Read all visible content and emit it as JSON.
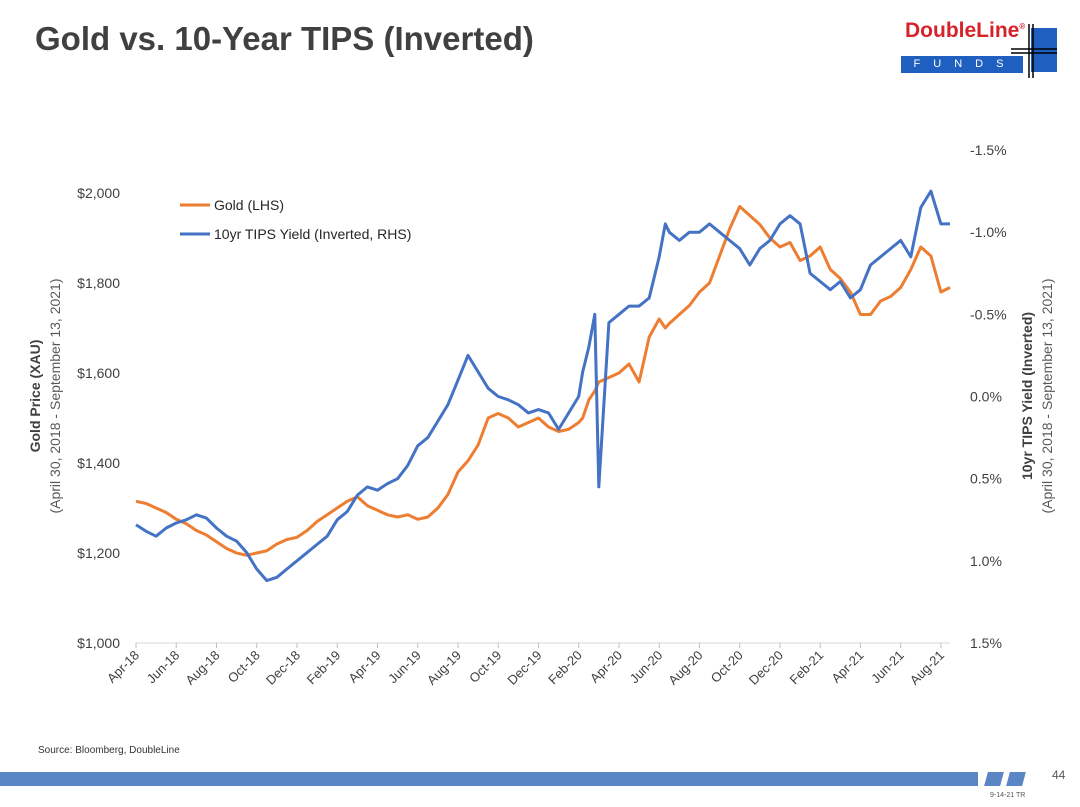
{
  "header": {
    "title": "Gold vs. 10-Year TIPS (Inverted)"
  },
  "logo": {
    "word": "DoubleLine",
    "registered": "®",
    "sub": "FUNDS",
    "colors": {
      "red": "#d6232a",
      "blue": "#1f5fbf"
    }
  },
  "footer": {
    "source": "Source: Bloomberg, DoubleLine",
    "page_number": "44",
    "stamp": "9-14-21 TR"
  },
  "chart_data": {
    "type": "line",
    "title": "Gold vs. 10-Year TIPS (Inverted)",
    "ylabel_left": "Gold Price (XAU)",
    "ylabel_left_sub": "(April 30, 2018 - September 13, 2021)",
    "ylabel_right": "10yr TIPS Yield (Inverted)",
    "ylabel_right_sub": "(April 30, 2018 - September 13, 2021)",
    "ylim_left": [
      1000,
      2000
    ],
    "ylim_right": [
      1.5,
      -1.5
    ],
    "left_ticks": [
      "$1,000",
      "$1,200",
      "$1,400",
      "$1,600",
      "$1,800",
      "$2,000"
    ],
    "left_tick_values": [
      1000,
      1200,
      1400,
      1600,
      1800,
      2000
    ],
    "right_ticks": [
      "1.5%",
      "1.0%",
      "0.5%",
      "0.0%",
      "-0.5%",
      "-1.0%",
      "-1.5%"
    ],
    "right_tick_values": [
      1.5,
      1.0,
      0.5,
      0.0,
      -0.5,
      -1.0,
      -1.5
    ],
    "x_tick_labels": [
      "Apr-18",
      "Jun-18",
      "Aug-18",
      "Oct-18",
      "Dec-18",
      "Feb-19",
      "Apr-19",
      "Jun-19",
      "Aug-19",
      "Oct-19",
      "Dec-19",
      "Feb-20",
      "Apr-20",
      "Jun-20",
      "Aug-20",
      "Oct-20",
      "Dec-20",
      "Feb-21",
      "Apr-21",
      "Jun-21",
      "Aug-21"
    ],
    "x_range_months": [
      0,
      40.45
    ],
    "legend_position": "top-left",
    "series": [
      {
        "name": "Gold (LHS)",
        "color": "#ed7d31",
        "axis": "left",
        "x": [
          0,
          0.5,
          1,
          1.5,
          2,
          2.5,
          3,
          3.5,
          4,
          4.5,
          5,
          5.5,
          6,
          6.5,
          7,
          7.5,
          8,
          8.5,
          9,
          9.5,
          10,
          10.5,
          11,
          11.5,
          12,
          12.5,
          13,
          13.5,
          14,
          14.5,
          15,
          15.5,
          16,
          16.5,
          17,
          17.5,
          18,
          18.5,
          19,
          19.5,
          20,
          20.5,
          21,
          21.5,
          22,
          22.2,
          22.5,
          22.8,
          23,
          23.5,
          24,
          24.5,
          25,
          25.5,
          26,
          26.3,
          26.5,
          27,
          27.5,
          28,
          28.5,
          29,
          29.5,
          30,
          30.5,
          31,
          31.5,
          32,
          32.5,
          33,
          33.5,
          34,
          34.5,
          35,
          35.5,
          36,
          36.5,
          37,
          37.5,
          38,
          38.5,
          39,
          39.5,
          40,
          40.45
        ],
        "values": [
          1315,
          1310,
          1300,
          1290,
          1275,
          1265,
          1250,
          1240,
          1225,
          1210,
          1200,
          1195,
          1200,
          1205,
          1220,
          1230,
          1235,
          1250,
          1270,
          1285,
          1300,
          1315,
          1325,
          1305,
          1295,
          1285,
          1280,
          1285,
          1275,
          1280,
          1300,
          1330,
          1380,
          1405,
          1440,
          1500,
          1510,
          1500,
          1480,
          1490,
          1500,
          1480,
          1470,
          1475,
          1490,
          1500,
          1540,
          1560,
          1580,
          1590,
          1600,
          1620,
          1580,
          1680,
          1720,
          1700,
          1710,
          1730,
          1750,
          1780,
          1800,
          1860,
          1920,
          1970,
          1950,
          1930,
          1900,
          1880,
          1890,
          1850,
          1860,
          1880,
          1830,
          1810,
          1780,
          1730,
          1730,
          1760,
          1770,
          1790,
          1830,
          1880,
          1860,
          1780,
          1790
        ]
      },
      {
        "name": "10yr TIPS Yield (Inverted, RHS)",
        "color": "#4472c4",
        "axis": "right",
        "x": [
          0,
          0.5,
          1,
          1.5,
          2,
          2.5,
          3,
          3.5,
          4,
          4.5,
          5,
          5.5,
          6,
          6.5,
          7,
          7.5,
          8,
          8.5,
          9,
          9.5,
          10,
          10.5,
          11,
          11.5,
          12,
          12.5,
          13,
          13.5,
          14,
          14.5,
          15,
          15.5,
          16,
          16.5,
          17,
          17.5,
          18,
          18.5,
          19,
          19.5,
          20,
          20.5,
          21,
          21.5,
          22,
          22.2,
          22.5,
          22.8,
          23,
          23.5,
          24,
          24.5,
          25,
          25.5,
          26,
          26.3,
          26.5,
          27,
          27.5,
          28,
          28.5,
          29,
          29.5,
          30,
          30.5,
          31,
          31.5,
          32,
          32.5,
          33,
          33.5,
          34,
          34.5,
          35,
          35.5,
          36,
          36.5,
          37,
          37.5,
          38,
          38.5,
          39,
          39.5,
          40,
          40.45
        ],
        "values": [
          0.78,
          0.82,
          0.85,
          0.8,
          0.77,
          0.75,
          0.72,
          0.74,
          0.8,
          0.85,
          0.88,
          0.95,
          1.05,
          1.12,
          1.1,
          1.05,
          1.0,
          0.95,
          0.9,
          0.85,
          0.75,
          0.7,
          0.6,
          0.55,
          0.57,
          0.53,
          0.5,
          0.42,
          0.3,
          0.25,
          0.15,
          0.05,
          -0.1,
          -0.25,
          -0.15,
          -0.05,
          0.0,
          0.02,
          0.05,
          0.1,
          0.08,
          0.1,
          0.2,
          0.1,
          0.0,
          -0.15,
          -0.3,
          -0.5,
          0.55,
          -0.45,
          -0.5,
          -0.55,
          -0.55,
          -0.6,
          -0.85,
          -1.05,
          -1.0,
          -0.95,
          -1.0,
          -1.0,
          -1.05,
          -1.0,
          -0.95,
          -0.9,
          -0.8,
          -0.9,
          -0.95,
          -1.05,
          -1.1,
          -1.05,
          -0.75,
          -0.7,
          -0.65,
          -0.7,
          -0.6,
          -0.65,
          -0.8,
          -0.85,
          -0.9,
          -0.95,
          -0.85,
          -1.15,
          -1.25,
          -1.05,
          -1.05
        ]
      }
    ]
  }
}
